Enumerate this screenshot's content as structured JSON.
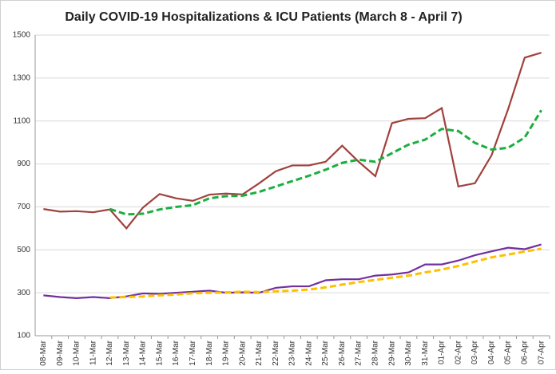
{
  "chart_data": {
    "type": "line",
    "title": "Daily COVID-19 Hospitalizations & ICU Patients (March 8 - April 7)",
    "categories": [
      "08-Mar",
      "09-Mar",
      "10-Mar",
      "11-Mar",
      "12-Mar",
      "13-Mar",
      "14-Mar",
      "15-Mar",
      "16-Mar",
      "17-Mar",
      "18-Mar",
      "19-Mar",
      "20-Mar",
      "21-Mar",
      "22-Mar",
      "23-Mar",
      "24-Mar",
      "25-Mar",
      "26-Mar",
      "27-Mar",
      "28-Mar",
      "29-Mar",
      "30-Mar",
      "31-Mar",
      "01-Apr",
      "02-Apr",
      "03-Apr",
      "04-Apr",
      "05-Apr",
      "06-Apr",
      "07-Apr"
    ],
    "series": [
      {
        "color": "#a0413c",
        "dashed": false,
        "values": [
          690,
          678,
          680,
          675,
          688,
          600,
          697,
          760,
          740,
          728,
          757,
          762,
          758,
          810,
          866,
          893,
          893,
          910,
          985,
          910,
          843,
          1090,
          1110,
          1113,
          1160,
          795,
          810,
          940,
          1155,
          1395,
          1418
        ]
      },
      {
        "color": "#1aaf3f",
        "dashed": true,
        "values": [
          null,
          null,
          null,
          null,
          690,
          665,
          668,
          688,
          700,
          708,
          740,
          750,
          752,
          770,
          795,
          820,
          845,
          873,
          905,
          920,
          910,
          950,
          990,
          1013,
          1063,
          1053,
          998,
          967,
          975,
          1023,
          1150
        ]
      },
      {
        "color": "#7030a0",
        "dashed": false,
        "values": [
          288,
          280,
          275,
          280,
          275,
          283,
          297,
          295,
          300,
          305,
          310,
          300,
          302,
          300,
          323,
          330,
          330,
          358,
          363,
          363,
          380,
          385,
          395,
          432,
          432,
          450,
          475,
          493,
          510,
          503,
          525
        ]
      },
      {
        "color": "#ffc000",
        "dashed": true,
        "values": [
          null,
          null,
          null,
          null,
          278,
          280,
          283,
          288,
          292,
          298,
          300,
          302,
          305,
          303,
          307,
          310,
          315,
          325,
          338,
          350,
          360,
          370,
          380,
          395,
          408,
          425,
          445,
          465,
          478,
          492,
          505
        ]
      }
    ],
    "ylim": [
      100,
      1500
    ],
    "yticks": [
      100,
      300,
      500,
      700,
      900,
      1100,
      1300,
      1500
    ],
    "grid": true
  }
}
